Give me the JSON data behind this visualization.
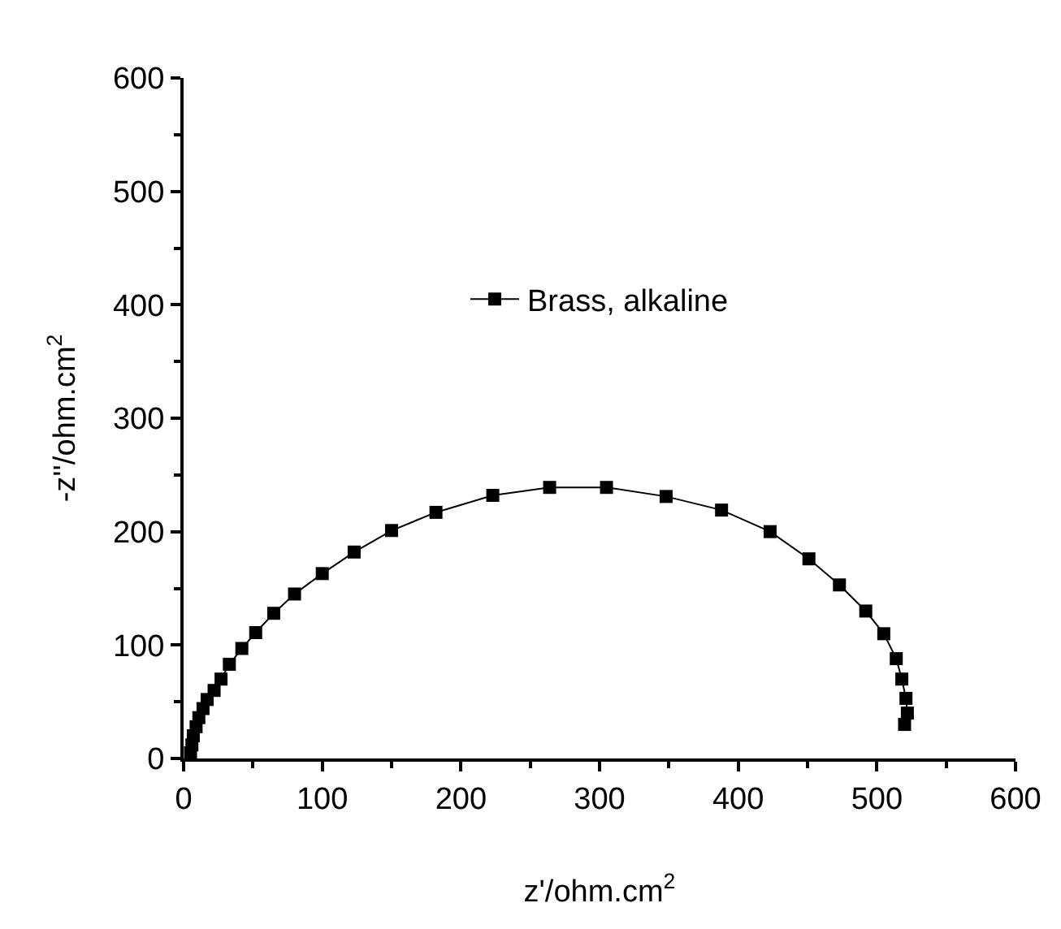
{
  "chart_data": {
    "type": "line",
    "xlabel": "z'/ohm.cm$^{2}$",
    "ylabel": "-z''/ohm.cm$^{2}$",
    "marker": "square",
    "grid": false,
    "legend": "top",
    "xlim": [
      0,
      600
    ],
    "ylim": [
      0,
      600
    ],
    "xticks": [
      0,
      100,
      200,
      300,
      400,
      500,
      600
    ],
    "yticks": [
      0,
      100,
      200,
      300,
      400,
      500,
      600
    ],
    "series": [
      {
        "name": "Brass, alkaline",
        "color": "#000000",
        "x": [
          5,
          6,
          7,
          9,
          11,
          14,
          17,
          22,
          27,
          33,
          42,
          52,
          65,
          80,
          100,
          123,
          150,
          182,
          223,
          264,
          305,
          348,
          388,
          423,
          451,
          473,
          492,
          505,
          514,
          518,
          521,
          522,
          520
        ],
        "values": [
          5,
          12,
          20,
          28,
          36,
          44,
          52,
          60,
          70,
          83,
          97,
          111,
          128,
          145,
          163,
          182,
          201,
          217,
          232,
          239,
          239,
          231,
          219,
          200,
          176,
          153,
          130,
          110,
          88,
          70,
          53,
          40,
          30
        ]
      }
    ]
  }
}
